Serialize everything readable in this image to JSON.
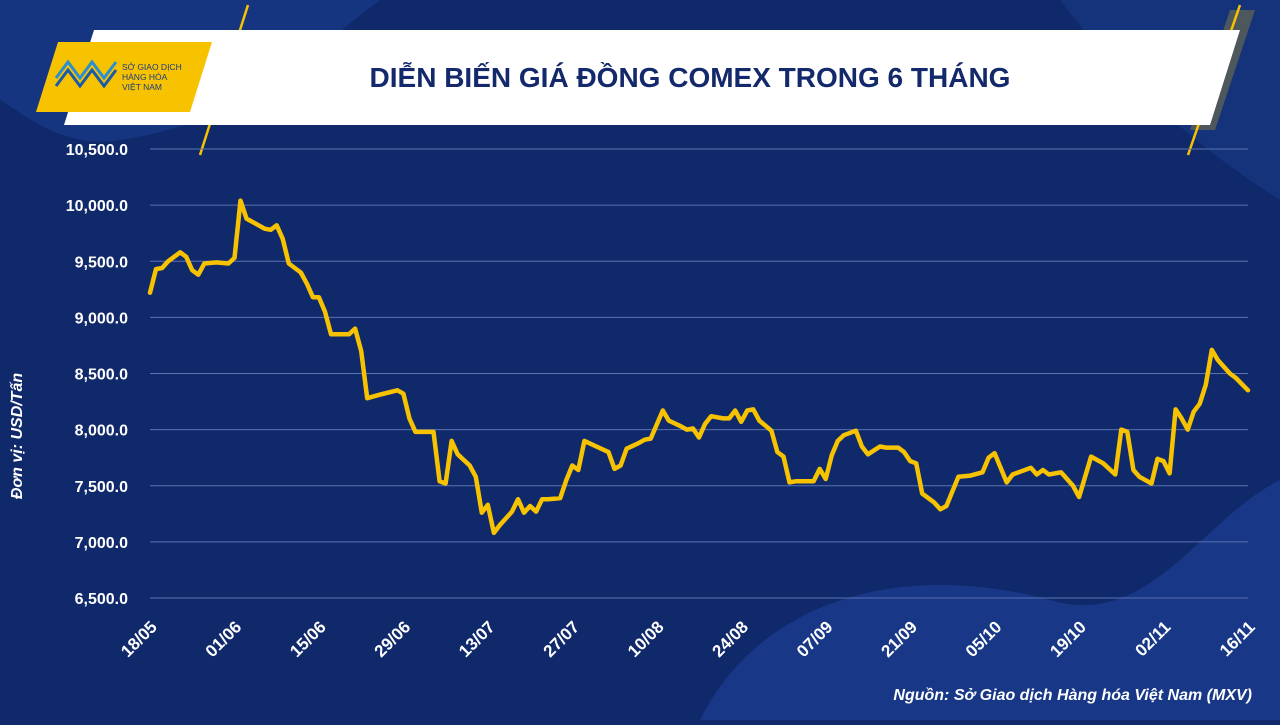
{
  "logo": {
    "lines": [
      "SỞ GIAO DỊCH",
      "HÀNG HÓA",
      "VIỆT NAM"
    ]
  },
  "chart_data": {
    "type": "line",
    "title": "DIỄN BIẾN GIÁ ĐỒNG COMEX TRONG 6 THÁNG",
    "y_label": "Đơn vị: USD/Tấn",
    "source": "Nguồn: Sở Giao dịch Hàng hóa Việt Nam (MXV)",
    "xlim": [
      0,
      182
    ],
    "xticks": [
      {
        "value": 0,
        "label": "18/05"
      },
      {
        "value": 14,
        "label": "01/06"
      },
      {
        "value": 28,
        "label": "15/06"
      },
      {
        "value": 42,
        "label": "29/06"
      },
      {
        "value": 56,
        "label": "13/07"
      },
      {
        "value": 70,
        "label": "27/07"
      },
      {
        "value": 84,
        "label": "10/08"
      },
      {
        "value": 98,
        "label": "24/08"
      },
      {
        "value": 112,
        "label": "07/09"
      },
      {
        "value": 126,
        "label": "21/09"
      },
      {
        "value": 140,
        "label": "05/10"
      },
      {
        "value": 154,
        "label": "19/10"
      },
      {
        "value": 168,
        "label": "02/11"
      },
      {
        "value": 182,
        "label": "16/11"
      }
    ],
    "ylim": [
      6500,
      10500
    ],
    "yticks": [
      {
        "value": 6500,
        "label": "6,500.0"
      },
      {
        "value": 7000,
        "label": "7,000.0"
      },
      {
        "value": 7500,
        "label": "7,500.0"
      },
      {
        "value": 8000,
        "label": "8,000.0"
      },
      {
        "value": 8500,
        "label": "8,500.0"
      },
      {
        "value": 9000,
        "label": "9,000.0"
      },
      {
        "value": 9500,
        "label": "9,500.0"
      },
      {
        "value": 10000,
        "label": "10,000.0"
      },
      {
        "value": 10500,
        "label": "10,500.0"
      }
    ],
    "grid": true,
    "color": "#f7c300",
    "x": [
      0,
      1,
      2,
      3,
      5,
      6,
      7,
      8,
      9,
      11,
      13,
      14,
      15,
      16,
      18,
      19,
      20,
      21,
      22,
      23,
      25,
      26,
      27,
      28,
      29,
      30,
      32,
      33,
      34,
      35,
      36,
      38,
      41,
      42,
      43,
      44,
      47,
      48,
      49,
      50,
      51,
      53,
      54,
      55,
      56,
      57,
      58,
      60,
      61,
      62,
      63,
      64,
      65,
      66,
      68,
      69,
      70,
      71,
      72,
      74,
      76,
      77,
      78,
      79,
      81,
      82,
      83,
      85,
      86,
      88,
      89,
      90,
      91,
      92,
      93,
      95,
      96,
      97,
      98,
      99,
      100,
      101,
      103,
      104,
      105,
      106,
      107,
      108,
      110,
      111,
      112,
      113,
      114,
      115,
      117,
      118,
      119,
      121,
      122,
      124,
      125,
      126,
      127,
      128,
      130,
      131,
      132,
      133,
      134,
      136,
      138,
      139,
      140,
      142,
      143,
      146,
      147,
      148,
      149,
      151,
      153,
      154,
      155,
      156,
      158,
      160,
      161,
      162,
      163,
      164,
      166,
      167,
      168,
      169,
      170,
      171,
      172,
      173,
      174,
      175,
      176,
      177,
      179,
      180,
      182
    ],
    "values": [
      9220,
      9430,
      9440,
      9500,
      9580,
      9540,
      9420,
      9380,
      9480,
      9490,
      9480,
      9530,
      10040,
      9880,
      9820,
      9790,
      9780,
      9820,
      9700,
      9480,
      9400,
      9300,
      9180,
      9180,
      9050,
      8850,
      8850,
      8850,
      8900,
      8700,
      8280,
      8310,
      8350,
      8320,
      8100,
      7980,
      7980,
      7540,
      7520,
      7900,
      7780,
      7680,
      7580,
      7260,
      7330,
      7080,
      7150,
      7270,
      7380,
      7260,
      7320,
      7270,
      7380,
      7380,
      7390,
      7550,
      7680,
      7640,
      7900,
      7850,
      7800,
      7650,
      7680,
      7830,
      7880,
      7910,
      7920,
      8170,
      8080,
      8030,
      8000,
      8010,
      7930,
      8050,
      8120,
      8100,
      8100,
      8170,
      8070,
      8170,
      8180,
      8080,
      7990,
      7800,
      7760,
      7530,
      7540,
      7540,
      7540,
      7650,
      7560,
      7770,
      7900,
      7950,
      7990,
      7850,
      7780,
      7850,
      7840,
      7840,
      7800,
      7720,
      7700,
      7430,
      7350,
      7290,
      7320,
      7450,
      7580,
      7590,
      7620,
      7750,
      7790,
      7530,
      7600,
      7660,
      7600,
      7640,
      7600,
      7620,
      7500,
      7400,
      7580,
      7760,
      7700,
      7600,
      8000,
      7980,
      7640,
      7580,
      7520,
      7740,
      7720,
      7610,
      8180,
      8100,
      8000,
      8160,
      8230,
      8400,
      8710,
      8620,
      8500,
      8460,
      8350
    ]
  }
}
